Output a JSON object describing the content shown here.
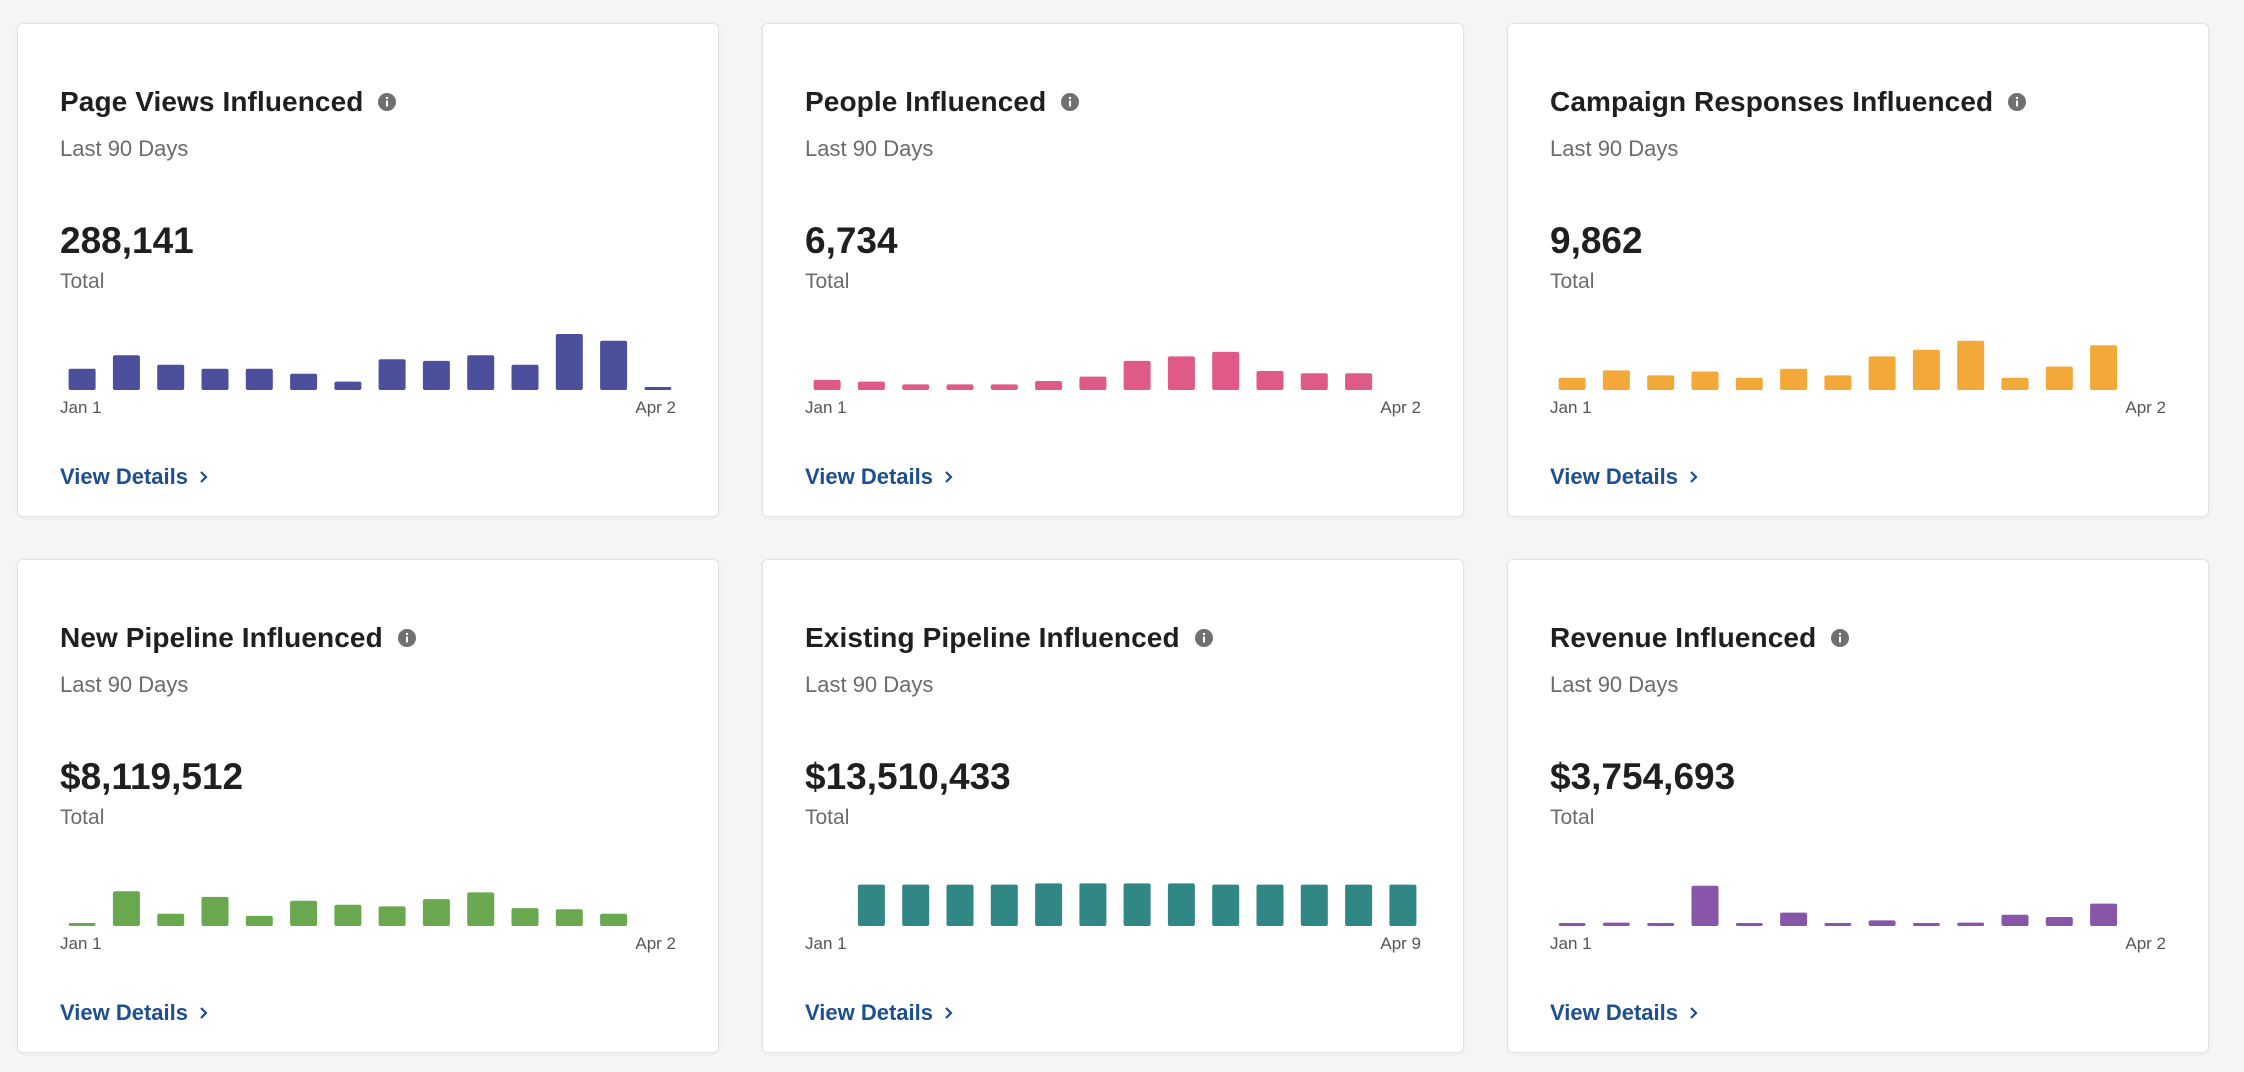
{
  "cards": [
    {
      "title": "Page Views Influenced",
      "period": "Last 90 Days",
      "value": "288,141",
      "value_label": "Total",
      "axis_start": "Jan 1",
      "axis_end": "Apr 2",
      "link": "View Details",
      "color": "#4b4f9c",
      "values": [
        0.38,
        0.62,
        0.45,
        0.38,
        0.38,
        0.29,
        0.15,
        0.55,
        0.52,
        0.62,
        0.45,
        1.0,
        0.88,
        0.03
      ]
    },
    {
      "title": "People Influenced",
      "period": "Last 90 Days",
      "value": "6,734",
      "value_label": "Total",
      "axis_start": "Jan 1",
      "axis_end": "Apr 2",
      "link": "View Details",
      "color": "#e05a86",
      "values": [
        0.18,
        0.15,
        0.1,
        0.1,
        0.1,
        0.16,
        0.24,
        0.52,
        0.6,
        0.68,
        0.34,
        0.3,
        0.3
      ]
    },
    {
      "title": "Campaign Responses Influenced",
      "period": "Last 90 Days",
      "value": "9,862",
      "value_label": "Total",
      "axis_start": "Jan 1",
      "axis_end": "Apr 2",
      "link": "View Details",
      "color": "#f3a93a",
      "values": [
        0.22,
        0.35,
        0.26,
        0.33,
        0.22,
        0.38,
        0.26,
        0.6,
        0.72,
        0.88,
        0.22,
        0.42,
        0.8
      ]
    },
    {
      "title": "New Pipeline Influenced",
      "period": "Last 90 Days",
      "value": "$8,119,512",
      "value_label": "Total",
      "axis_start": "Jan 1",
      "axis_end": "Apr 2",
      "link": "View Details",
      "color": "#6aa84f",
      "values": [
        0.04,
        0.62,
        0.22,
        0.52,
        0.18,
        0.45,
        0.38,
        0.35,
        0.48,
        0.6,
        0.32,
        0.3,
        0.22
      ]
    },
    {
      "title": "Existing Pipeline Influenced",
      "period": "Last 90 Days",
      "value": "$13,510,433",
      "value_label": "Total",
      "axis_start": "Jan 1",
      "axis_end": "Apr 9",
      "link": "View Details",
      "color": "#318784",
      "values": [
        0,
        0.74,
        0.74,
        0.74,
        0.74,
        0.76,
        0.76,
        0.76,
        0.76,
        0.74,
        0.74,
        0.74,
        0.74,
        0.74
      ]
    },
    {
      "title": "Revenue Influenced",
      "period": "Last 90 Days",
      "value": "$3,754,693",
      "value_label": "Total",
      "axis_start": "Jan 1",
      "axis_end": "Apr 2",
      "link": "View Details",
      "color": "#8756a8",
      "values": [
        0.03,
        0.06,
        0.05,
        0.72,
        0.03,
        0.24,
        0.04,
        0.1,
        0.03,
        0.06,
        0.2,
        0.16,
        0.4
      ]
    }
  ]
}
